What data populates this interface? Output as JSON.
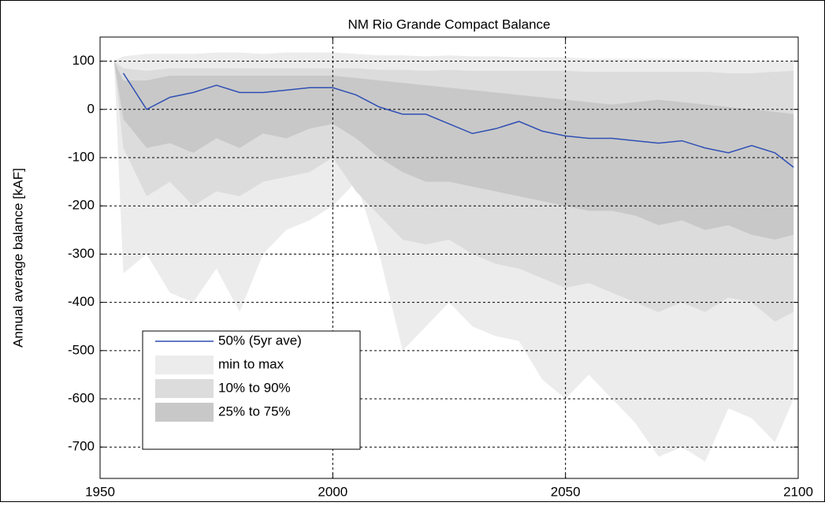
{
  "chart_data": {
    "type": "line",
    "title": "NM Rio Grande Compact Balance",
    "y_label": "Annual average balance [kAF]",
    "x": [
      1953,
      1955,
      1960,
      1965,
      1970,
      1975,
      1980,
      1985,
      1990,
      1995,
      2000,
      2005,
      2010,
      2015,
      2020,
      2025,
      2030,
      2035,
      2040,
      2045,
      2050,
      2055,
      2060,
      2065,
      2070,
      2075,
      2080,
      2085,
      2090,
      2095,
      2099
    ],
    "xlim": [
      1950,
      2100
    ],
    "xticks": [
      1950,
      2000,
      2050,
      2100
    ],
    "ylim": [
      -765,
      150
    ],
    "yticks": [
      100,
      0,
      -100,
      -200,
      -300,
      -400,
      -500,
      -600,
      -700
    ],
    "grid": true,
    "legend": "lower left",
    "series": [
      {
        "name": "50% (5yr ave)",
        "color": "#2f4fb4",
        "values": [
          null,
          75,
          0,
          25,
          35,
          50,
          35,
          35,
          40,
          45,
          45,
          30,
          5,
          -10,
          -10,
          -30,
          -50,
          -40,
          -25,
          -45,
          -55,
          -60,
          -60,
          -65,
          -70,
          -65,
          -80,
          -90,
          -75,
          -90,
          -120
        ]
      },
      {
        "name": "min to max",
        "color": "#ececec",
        "upper": [
          100,
          110,
          115,
          115,
          115,
          118,
          118,
          115,
          118,
          118,
          118,
          115,
          112,
          112,
          110,
          112,
          110,
          110,
          108,
          108,
          108,
          105,
          105,
          105,
          105,
          105,
          102,
          102,
          100,
          100,
          100
        ],
        "lower": [
          100,
          -340,
          -300,
          -380,
          -400,
          -330,
          -420,
          -300,
          -250,
          -230,
          -200,
          -150,
          -300,
          -500,
          -450,
          -400,
          -450,
          -470,
          -480,
          -560,
          -600,
          -550,
          -600,
          -650,
          -720,
          -700,
          -730,
          -620,
          -640,
          -690,
          -600
        ]
      },
      {
        "name": "10% to 90%",
        "color": "#dcdcdc",
        "upper": [
          100,
          85,
          80,
          85,
          85,
          85,
          85,
          85,
          85,
          85,
          85,
          85,
          82,
          82,
          80,
          82,
          80,
          80,
          80,
          80,
          80,
          78,
          78,
          78,
          78,
          78,
          78,
          75,
          75,
          78,
          80
        ],
        "lower": [
          100,
          -80,
          -180,
          -150,
          -200,
          -170,
          -180,
          -150,
          -140,
          -130,
          -100,
          -170,
          -220,
          -270,
          -280,
          -270,
          -300,
          -320,
          -330,
          -350,
          -370,
          -360,
          -380,
          -400,
          -420,
          -400,
          -420,
          -390,
          -400,
          -440,
          -420
        ]
      },
      {
        "name": "25% to 75%",
        "color": "#c8c8c8",
        "upper": [
          100,
          60,
          60,
          70,
          70,
          70,
          70,
          70,
          70,
          70,
          70,
          65,
          60,
          55,
          50,
          45,
          40,
          35,
          30,
          25,
          20,
          15,
          10,
          15,
          20,
          15,
          10,
          5,
          0,
          -5,
          -10
        ],
        "lower": [
          100,
          -20,
          -80,
          -70,
          -90,
          -60,
          -80,
          -50,
          -60,
          -40,
          -30,
          -60,
          -100,
          -130,
          -150,
          -150,
          -160,
          -170,
          -180,
          -190,
          -200,
          -210,
          -210,
          -220,
          -240,
          -230,
          -250,
          -240,
          -260,
          -270,
          -260
        ]
      }
    ]
  }
}
